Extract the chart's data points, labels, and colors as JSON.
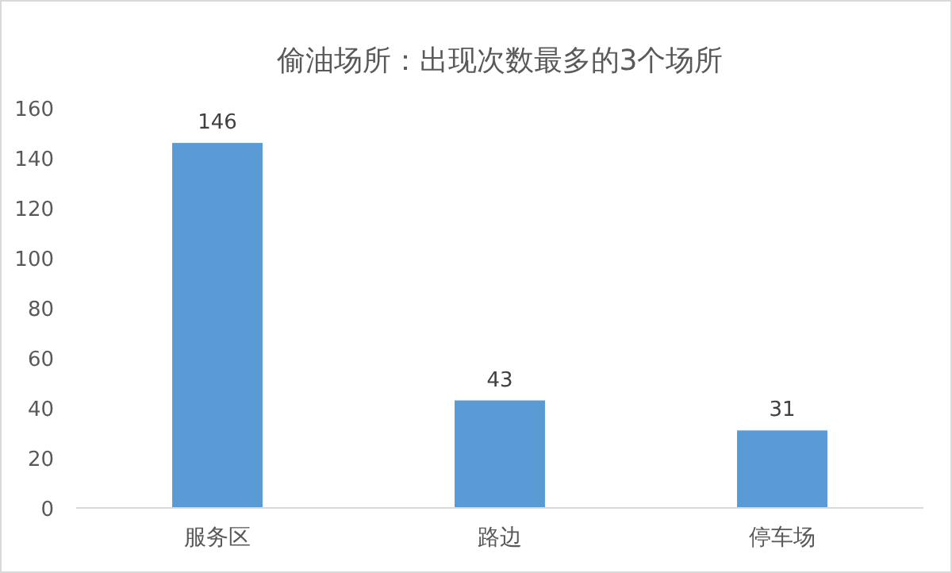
{
  "chart_data": {
    "type": "bar",
    "title": "偷油场所：出现次数最多的3个场所",
    "categories": [
      "服务区",
      "路边",
      "停车场"
    ],
    "values": [
      146,
      43,
      31
    ],
    "color": "#5b9bd5",
    "ylim": [
      0,
      160
    ],
    "yticks": [
      0,
      20,
      40,
      60,
      80,
      100,
      120,
      140,
      160
    ],
    "data_labels": true
  }
}
